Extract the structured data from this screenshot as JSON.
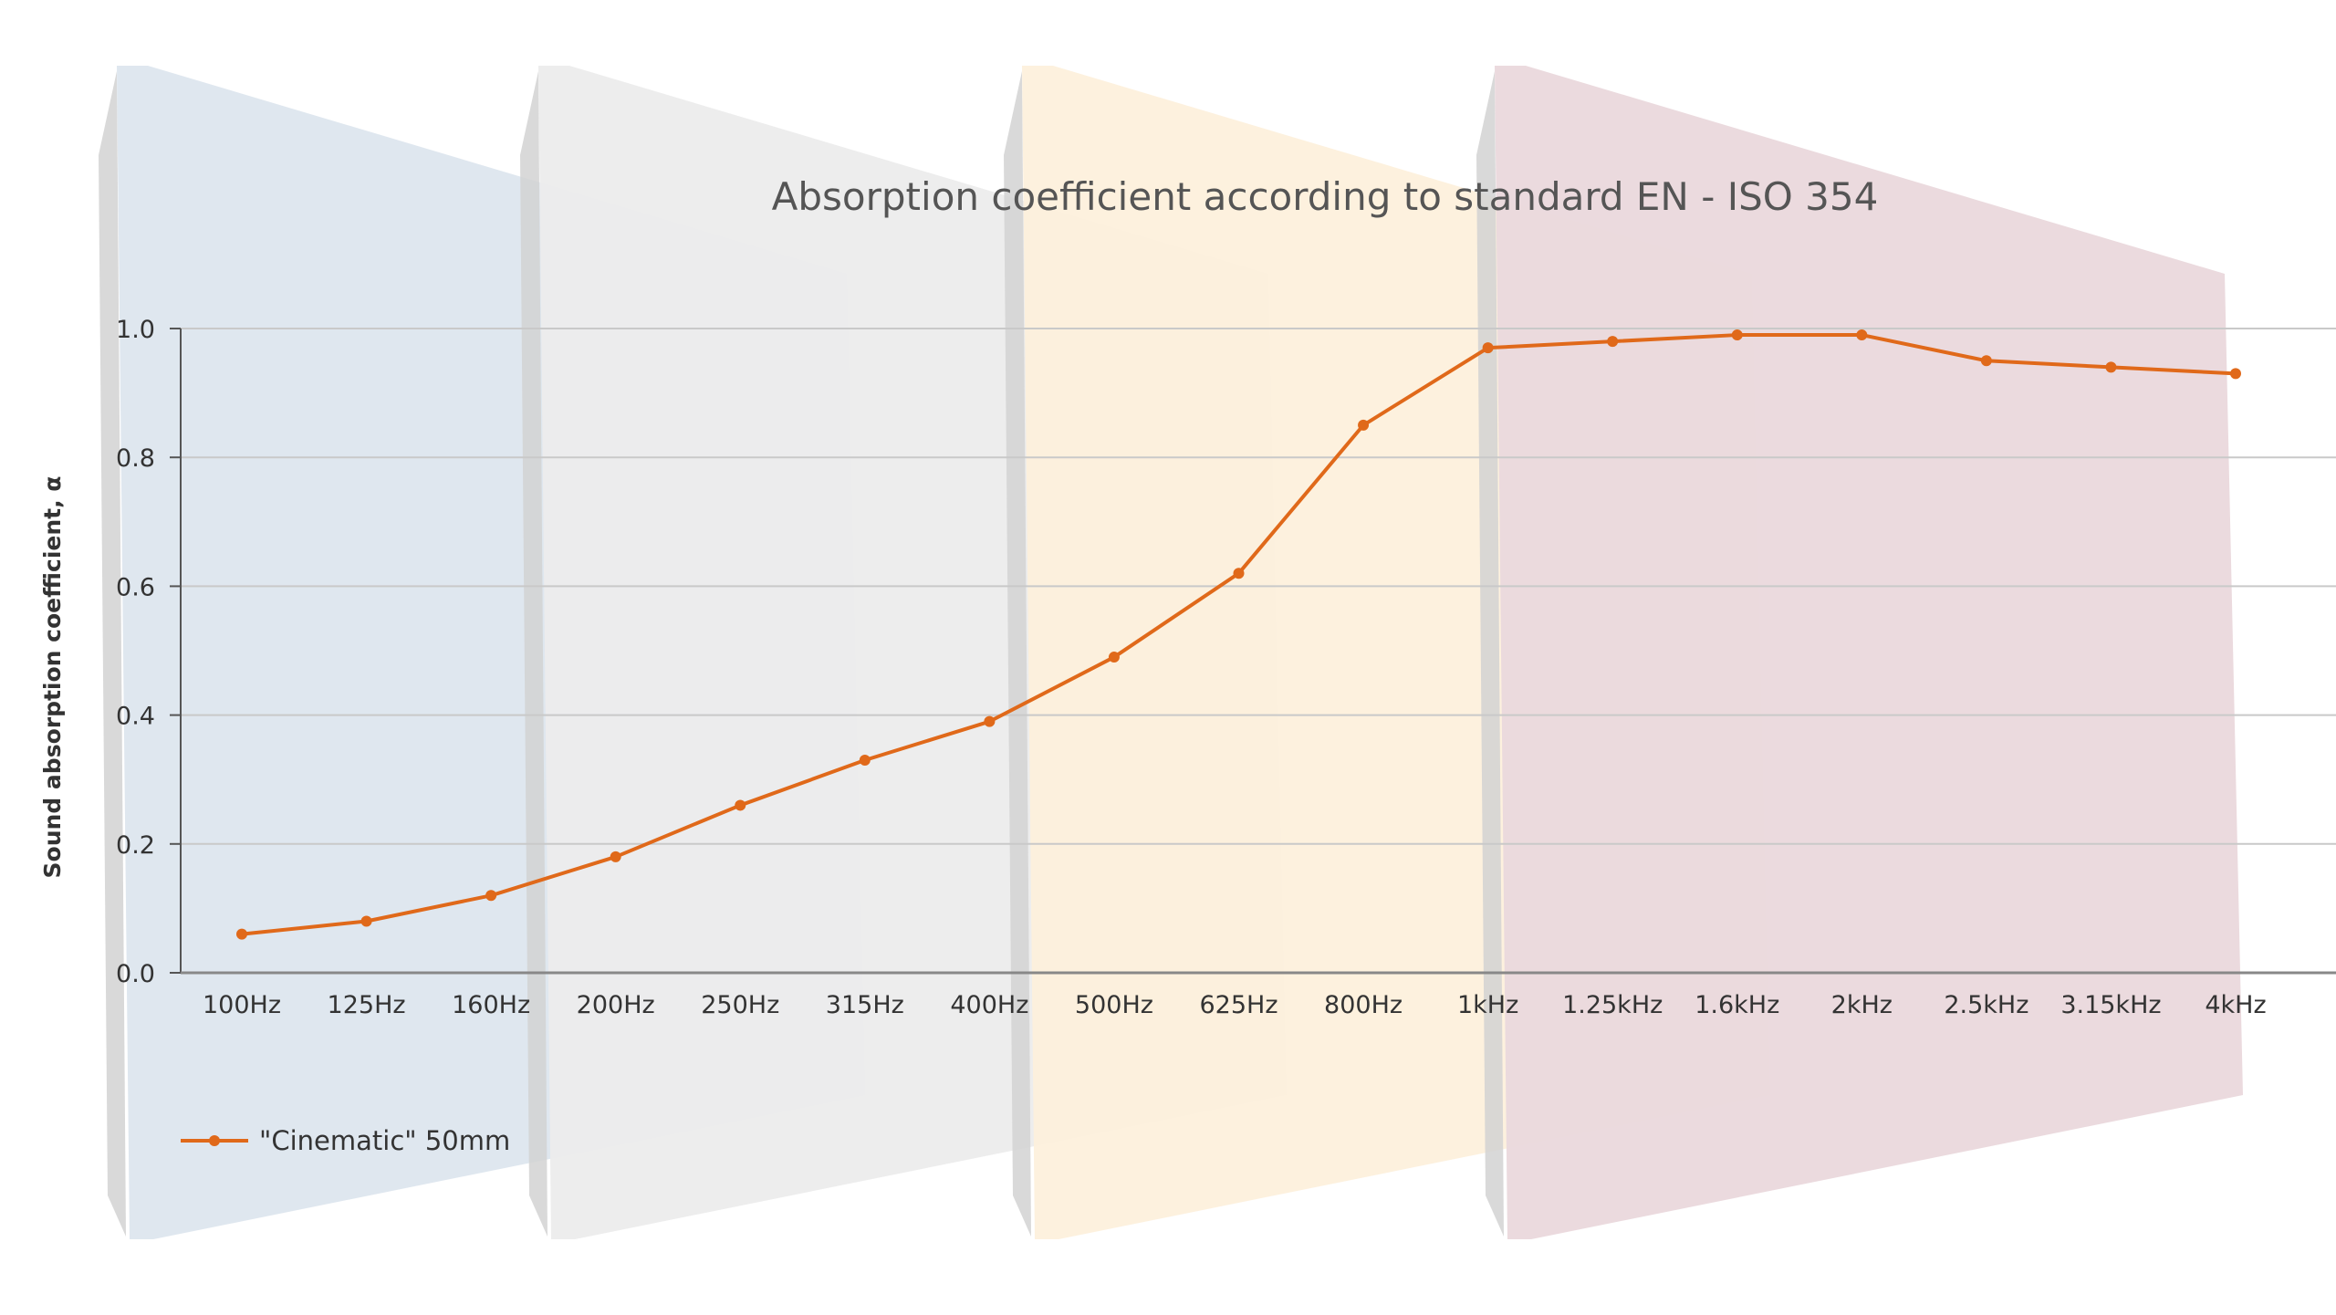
{
  "chart_data": {
    "type": "line",
    "title": "Absorption coefficient according to standard EN - ISO 354",
    "xlabel": "",
    "ylabel": "Sound absorption coefficient, α",
    "categories": [
      "100Hz",
      "125Hz",
      "160Hz",
      "200Hz",
      "250Hz",
      "315Hz",
      "400Hz",
      "500Hz",
      "625Hz",
      "800Hz",
      "1kHz",
      "1.25kHz",
      "1.6kHz",
      "2kHz",
      "2.5kHz",
      "3.15kHz",
      "4kHz"
    ],
    "ylim": [
      0,
      1
    ],
    "yticks": [
      "0.0",
      "0.2",
      "0.4",
      "0.6",
      "0.8",
      "1.0"
    ],
    "grid": true,
    "legend_position": "bottom-left",
    "series": [
      {
        "name": "\"Cinematic\" 50mm",
        "color": "#e0691a",
        "values": [
          0.06,
          0.08,
          0.12,
          0.18,
          0.26,
          0.33,
          0.39,
          0.49,
          0.62,
          0.85,
          0.97,
          0.98,
          0.99,
          0.99,
          0.95,
          0.94,
          0.93
        ]
      }
    ],
    "background_panel_colors": [
      "#dde6ee",
      "#ececec",
      "#fdf0dc",
      "#ead8dc"
    ]
  }
}
